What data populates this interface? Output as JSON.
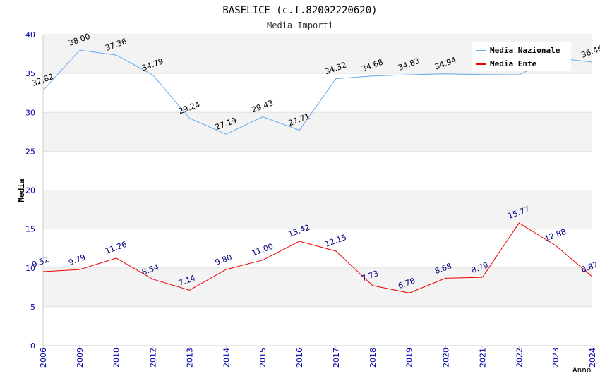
{
  "chart_data": {
    "type": "line",
    "title": "BASELICE (c.f.82002220620)",
    "subtitle": "Media Importi",
    "xlabel": "Anno",
    "ylabel": "Media",
    "ylim": [
      0,
      40
    ],
    "yticks": [
      "0",
      "5",
      "10",
      "15",
      "20",
      "25",
      "30",
      "35",
      "40"
    ],
    "categories": [
      "2006",
      "2009",
      "2010",
      "2012",
      "2013",
      "2014",
      "2015",
      "2016",
      "2017",
      "2018",
      "2019",
      "2020",
      "2021",
      "2022",
      "2023",
      "2024"
    ],
    "series": [
      {
        "name": "Media Nazionale",
        "color": "#66aaee",
        "label_color": "#000000",
        "values": [
          32.82,
          38.0,
          37.36,
          34.79,
          29.24,
          27.19,
          29.43,
          27.71,
          34.32,
          34.68,
          34.83,
          34.94,
          34.85,
          34.83,
          36.98,
          36.46
        ],
        "labels": [
          "32.82",
          "38.00",
          "37.36",
          "34.79",
          "29.24",
          "27.19",
          "29.43",
          "27.71",
          "34.32",
          "34.68",
          "34.83",
          "34.94",
          "",
          "",
          "",
          "36.46"
        ]
      },
      {
        "name": "Media Ente",
        "color": "#ee0000",
        "label_color": "#000080",
        "values": [
          9.52,
          9.79,
          11.26,
          8.54,
          7.14,
          9.8,
          11.0,
          13.42,
          12.15,
          7.73,
          6.78,
          8.68,
          8.79,
          15.77,
          12.88,
          8.87
        ],
        "labels": [
          "9.52",
          "9.79",
          "11.26",
          "8.54",
          "7.14",
          "9.80",
          "11.00",
          "13.42",
          "12.15",
          "7.73",
          "6.78",
          "8.68",
          "8.79",
          "15.77",
          "12.88",
          "8.87"
        ]
      }
    ],
    "grid": true,
    "legend_position": "top-right"
  }
}
